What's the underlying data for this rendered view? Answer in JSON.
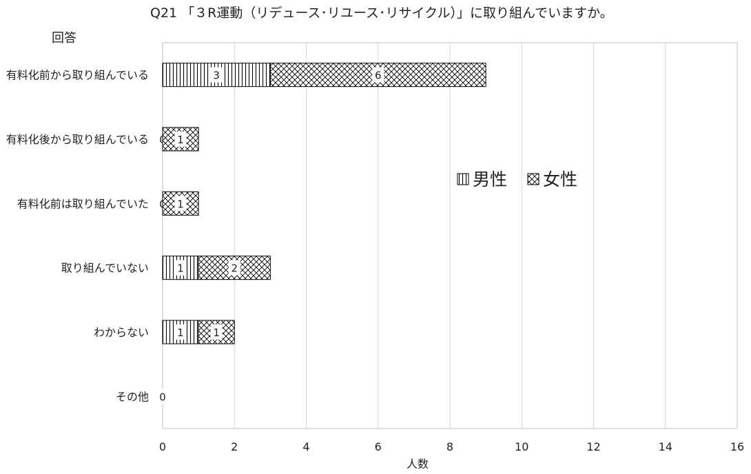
{
  "chart_data": {
    "type": "bar",
    "orientation": "horizontal",
    "stacked": true,
    "title": "Q21 「３R運動（リデュース･リユース･リサイクル）」に取り組んでいますか。",
    "ylabel": "回答",
    "xlabel": "人数",
    "categories": [
      "有料化前から取り組んでいる",
      "有料化後から取り組んでいる",
      "有料化前は取り組んでいた",
      "取り組んでいない",
      "わからない",
      "その他"
    ],
    "series": [
      {
        "name": "男性",
        "values": [
          3,
          0,
          0,
          1,
          1,
          0
        ],
        "pattern": "vertical-lines"
      },
      {
        "name": "女性",
        "values": [
          6,
          1,
          1,
          2,
          1,
          0
        ],
        "pattern": "crosshatch"
      }
    ],
    "xlim": [
      0,
      16
    ],
    "xticks": [
      0,
      2,
      4,
      6,
      8,
      10,
      12,
      14,
      16
    ],
    "grid": true,
    "legend_position": "right-middle",
    "colors": {
      "grid": "#d9d9d9",
      "bar_stroke": "#000000",
      "frame": "#bfbfbf"
    }
  }
}
